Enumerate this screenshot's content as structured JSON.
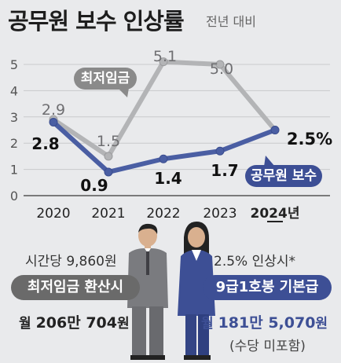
{
  "title": "공무원 보수 인상률",
  "subtitle": "전년 대비",
  "chart_data": {
    "type": "line",
    "title": "공무원 보수 인상률",
    "subtitle": "전년 대비",
    "categories": [
      "2020",
      "2021",
      "2022",
      "2023",
      "2024년"
    ],
    "ylim": [
      0,
      5
    ],
    "yticks": [
      "0",
      "1",
      "2",
      "3",
      "4",
      "5"
    ],
    "grid": true,
    "series": [
      {
        "name": "최저임금",
        "color": "#b3b4b6",
        "values": [
          2.9,
          1.5,
          5.1,
          5.0,
          2.5
        ],
        "labels": [
          "2.9",
          "1.5",
          "5.1",
          "5.0",
          ""
        ]
      },
      {
        "name": "공무원 보수",
        "color": "#4a5ea3",
        "values": [
          2.8,
          0.9,
          1.4,
          1.7,
          2.5
        ],
        "labels": [
          "2.8",
          "0.9",
          "1.4",
          "1.7",
          "2.5%"
        ]
      }
    ]
  },
  "info": {
    "left": {
      "caption": "시간당 9,860원",
      "box_label": "최저임금 환산시",
      "amount_prefix": "월 ",
      "amount_bold": "206만 704",
      "amount_suffix": "원"
    },
    "right": {
      "caption": "2.5% 인상시*",
      "box_label": "9급1호봉 기본급",
      "amount_prefix": "월 ",
      "amount_bold": "181만 5,070",
      "amount_suffix": "원",
      "note": "(수당 미포함)"
    }
  },
  "colors": {
    "background": "#e9eaec",
    "min_wage": "#b3b4b6",
    "civil": "#4a5ea3",
    "left_box": "#6a6a6a",
    "right_box": "#3d4f95"
  }
}
